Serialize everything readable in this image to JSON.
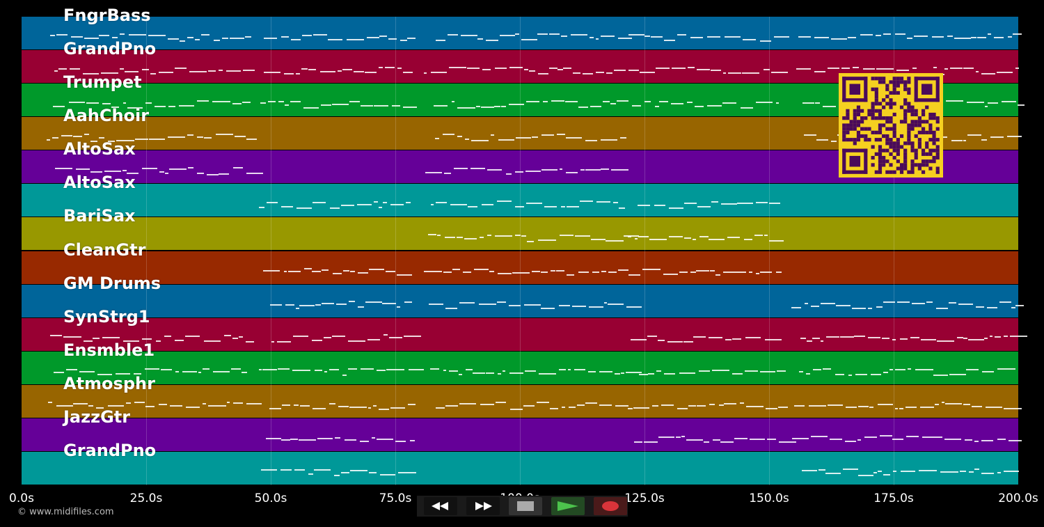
{
  "tracks": [
    {
      "label": "FngrBass",
      "color": "#00659a"
    },
    {
      "label": "GrandPno",
      "color": "#980033"
    },
    {
      "label": "Trumpet",
      "color": "#00992a"
    },
    {
      "label": "AahChoir",
      "color": "#986500"
    },
    {
      "label": "AltoSax",
      "color": "#650098"
    },
    {
      "label": "AltoSax",
      "color": "#009898"
    },
    {
      "label": "BariSax",
      "color": "#989800"
    },
    {
      "label": "CleanGtr",
      "color": "#982900"
    },
    {
      "label": "GM Drums",
      "color": "#00659a"
    },
    {
      "label": "SynStrg1",
      "color": "#980033"
    },
    {
      "label": "Ensmble1",
      "color": "#00992a"
    },
    {
      "label": "Atmosphr",
      "color": "#986500"
    },
    {
      "label": "JazzGtr",
      "color": "#650098"
    },
    {
      "label": "GrandPno",
      "color": "#009898"
    }
  ],
  "time_axis": {
    "ticks": [
      "0.0s",
      "25.0s",
      "50.0s",
      "75.0s",
      "100.0s",
      "125.0s",
      "150.0s",
      "175.0s",
      "200.0s"
    ],
    "max_seconds": 200
  },
  "copyright": "© www.midifiles.com",
  "transport": {
    "buttons": [
      "rewind-icon",
      "fast-forward-icon",
      "stop-icon",
      "play-icon",
      "record-icon"
    ],
    "play_color": "#4cc34c",
    "record_color": "#d9343a"
  },
  "qr_colors": {
    "fg": "#4a0a5a",
    "bg": "#f5d020"
  }
}
